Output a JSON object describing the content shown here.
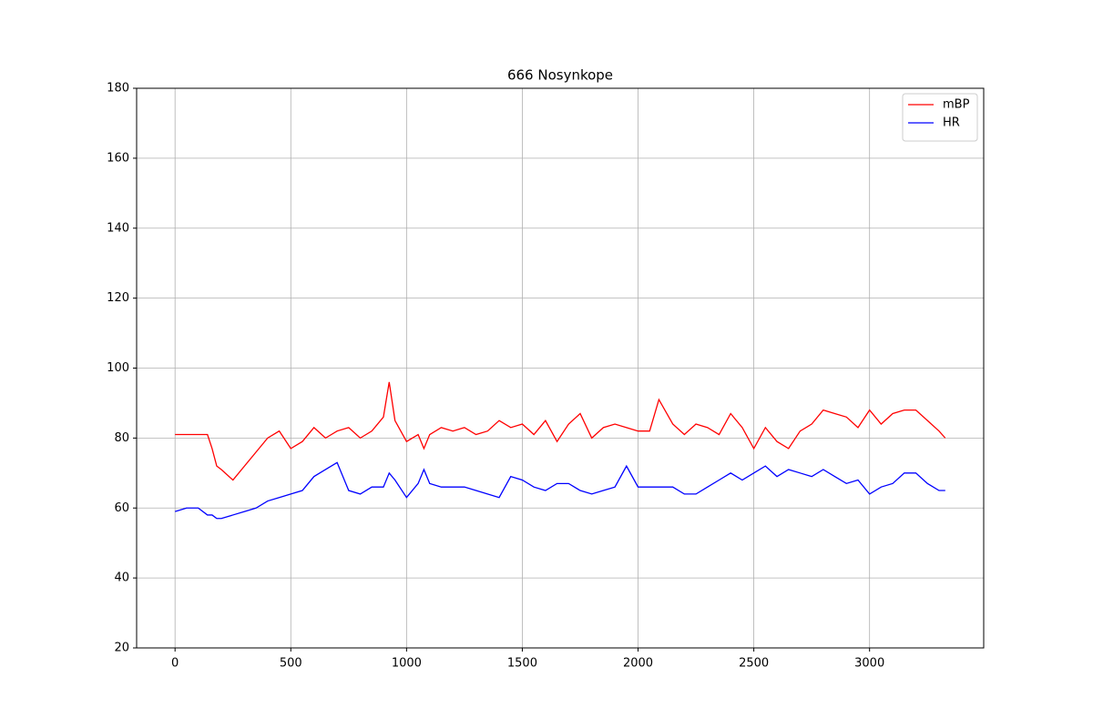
{
  "chart_data": {
    "type": "line",
    "title": "666 Nosynkope",
    "x": [
      0,
      50,
      100,
      140,
      160,
      180,
      200,
      250,
      300,
      350,
      400,
      450,
      500,
      550,
      600,
      650,
      700,
      750,
      800,
      850,
      900,
      925,
      950,
      1000,
      1050,
      1075,
      1100,
      1150,
      1200,
      1250,
      1300,
      1350,
      1400,
      1450,
      1500,
      1550,
      1600,
      1650,
      1700,
      1750,
      1800,
      1850,
      1900,
      1950,
      2000,
      2050,
      2090,
      2150,
      2200,
      2250,
      2300,
      2350,
      2400,
      2450,
      2500,
      2550,
      2600,
      2650,
      2700,
      2750,
      2800,
      2850,
      2900,
      2950,
      3000,
      3050,
      3100,
      3150,
      3200,
      3250,
      3300,
      3327
    ],
    "series": [
      {
        "name": "mBP",
        "color": "#ff0000",
        "values": [
          81,
          81,
          81,
          81,
          77,
          72,
          71,
          68,
          72,
          76,
          80,
          82,
          77,
          79,
          83,
          80,
          82,
          83,
          80,
          82,
          86,
          96,
          85,
          79,
          81,
          77,
          81,
          83,
          82,
          83,
          81,
          82,
          85,
          83,
          84,
          81,
          85,
          79,
          84,
          87,
          80,
          83,
          84,
          83,
          82,
          82,
          91,
          84,
          81,
          84,
          83,
          81,
          87,
          83,
          77,
          83,
          79,
          77,
          82,
          84,
          88,
          87,
          86,
          83,
          88,
          84,
          87,
          88,
          88,
          85,
          82,
          80
        ]
      },
      {
        "name": "HR",
        "color": "#0000ff",
        "values": [
          59,
          60,
          60,
          58,
          58,
          57,
          57,
          58,
          59,
          60,
          62,
          63,
          64,
          65,
          69,
          71,
          73,
          65,
          64,
          66,
          66,
          70,
          68,
          63,
          67,
          71,
          67,
          66,
          66,
          66,
          65,
          64,
          63,
          69,
          68,
          66,
          65,
          67,
          67,
          65,
          64,
          65,
          66,
          72,
          66,
          66,
          66,
          66,
          64,
          64,
          66,
          68,
          70,
          68,
          70,
          72,
          69,
          71,
          70,
          69,
          71,
          69,
          67,
          68,
          64,
          66,
          67,
          70,
          70,
          67,
          65,
          65
        ]
      }
    ],
    "xlim": [
      -166,
      3493
    ],
    "ylim": [
      20,
      180
    ],
    "xticks": [
      0,
      500,
      1000,
      1500,
      2000,
      2500,
      3000
    ],
    "yticks": [
      20,
      40,
      60,
      80,
      100,
      120,
      140,
      160,
      180
    ],
    "grid": true,
    "legend": "upper-right"
  }
}
